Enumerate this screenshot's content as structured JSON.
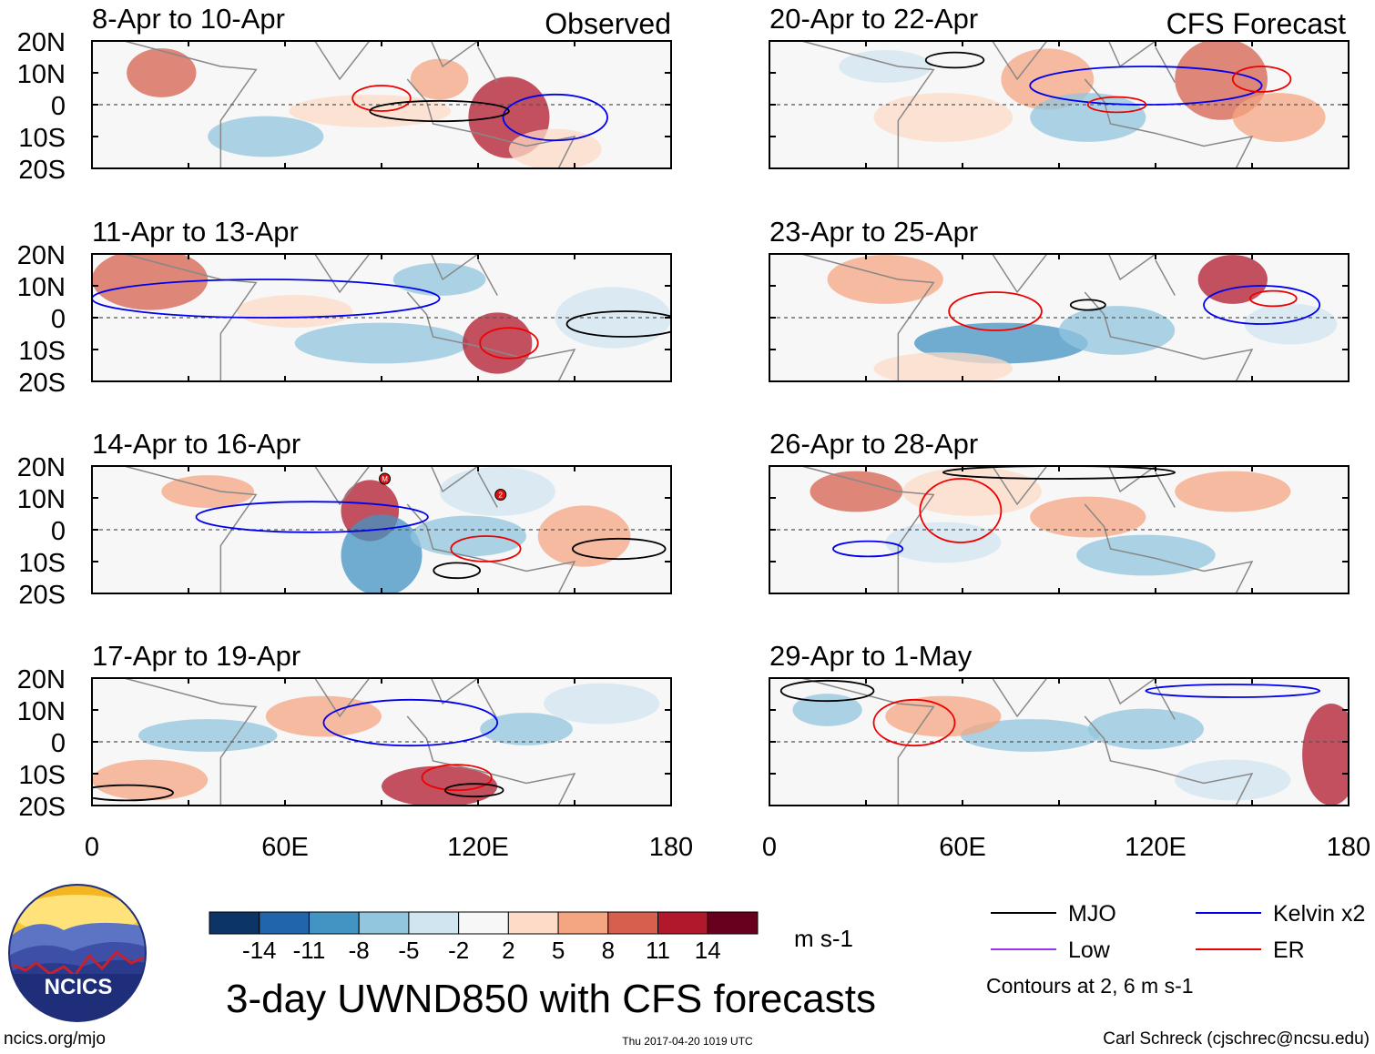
{
  "chart_data": {
    "type": "heatmap",
    "title": "3-day UWND850 with CFS forecasts",
    "variable": "UWND850",
    "units": "m s-1",
    "xlim": [
      0,
      180
    ],
    "ylim": [
      -20,
      20
    ],
    "x_ticks": [
      "0",
      "60E",
      "120E",
      "180"
    ],
    "y_ticks": [
      "20N",
      "10N",
      "0",
      "10S",
      "20S"
    ],
    "panel_group_labels": {
      "observed": "Observed",
      "forecast": "CFS Forecast"
    },
    "colorbar": {
      "levels": [
        "-14",
        "-11",
        "-8",
        "-5",
        "-2",
        "2",
        "5",
        "8",
        "11",
        "14"
      ],
      "colors": [
        "#0d3466",
        "#2166ac",
        "#4393c3",
        "#92c5de",
        "#d1e5f0",
        "#f7f7f7",
        "#fddbc7",
        "#f4a582",
        "#d6604d",
        "#b2182b",
        "#67001f"
      ]
    },
    "legend": [
      {
        "label": "MJO",
        "color": "#000000"
      },
      {
        "label": "Kelvin x2",
        "color": "#0000ee"
      },
      {
        "label": "Low",
        "color": "#9933ee"
      },
      {
        "label": "ER",
        "color": "#ee0000"
      }
    ],
    "contour_note": "Contours at 2, 6 m s-1",
    "panels": [
      {
        "title": "8-Apr to 10-Apr",
        "col": 0,
        "row": 0,
        "group": "observed"
      },
      {
        "title": "11-Apr to 13-Apr",
        "col": 0,
        "row": 1
      },
      {
        "title": "14-Apr to 16-Apr",
        "col": 0,
        "row": 2,
        "markers": [
          {
            "lon": 91,
            "lat": 16,
            "label": "M"
          },
          {
            "lon": 127,
            "lat": 11,
            "label": "2"
          }
        ]
      },
      {
        "title": "17-Apr to 19-Apr",
        "col": 0,
        "row": 3
      },
      {
        "title": "20-Apr to 22-Apr",
        "col": 1,
        "row": 0,
        "group": "forecast"
      },
      {
        "title": "23-Apr to 25-Apr",
        "col": 1,
        "row": 1
      },
      {
        "title": "26-Apr to 28-Apr",
        "col": 1,
        "row": 2
      },
      {
        "title": "29-Apr to 1-May",
        "col": 1,
        "row": 3
      }
    ]
  },
  "logo": {
    "text": "NCICS"
  },
  "footer": {
    "url": "ncics.org/mjo",
    "timestamp": "Thu 2017-04-20 1019 UTC",
    "author": "Carl Schreck (cjschrec@ncsu.edu)"
  }
}
